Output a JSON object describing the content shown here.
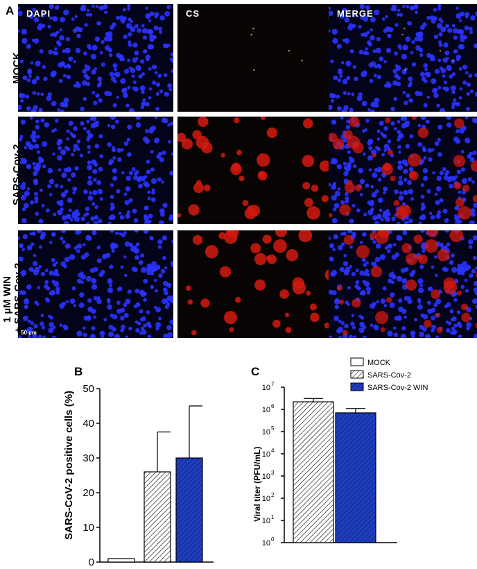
{
  "figure": {
    "panel_a": "A",
    "panel_b": "B",
    "panel_c": "C",
    "channels": [
      "DAPI",
      "CS",
      "MERGE"
    ],
    "rows": [
      "MOCK",
      "SARS-Cov-2",
      "1 µM WIN",
      "+ SARS-Cov-2"
    ],
    "scale_bar": "50 µm"
  },
  "colors": {
    "nuclei": "#2a33ff",
    "cs_signal": "#d41a10",
    "tile_bg": "#03031a",
    "win_bar": "#1f3fbf"
  },
  "chart_data": [
    {
      "type": "bar",
      "categories": [
        "MOCK",
        "SARS-Cov-2",
        "SARS-Cov-2 WIN"
      ],
      "values": [
        1,
        26,
        30
      ],
      "error": [
        0,
        11.5,
        15
      ],
      "ylabel": "SARS-CoV-2 positive cells (%)",
      "ylim": [
        0,
        50
      ],
      "yticks": [
        "0",
        "10",
        "20",
        "30",
        "40",
        "50"
      ]
    },
    {
      "type": "bar",
      "scale": "log",
      "categories": [
        "SARS-Cov-2",
        "SARS-Cov-2 WIN"
      ],
      "values": [
        2200000,
        700000
      ],
      "error_upper": [
        3100000,
        1100000
      ],
      "ylabel": "Viral titer (PFU/mL)",
      "ylim": [
        1,
        10000000
      ],
      "tick_base": "10",
      "tick_exponents": [
        "0",
        "1",
        "2",
        "3",
        "4",
        "5",
        "6",
        "7"
      ],
      "legend": [
        "MOCK",
        "SARS-Cov-2",
        "SARS-Cov-2 WIN"
      ]
    }
  ]
}
